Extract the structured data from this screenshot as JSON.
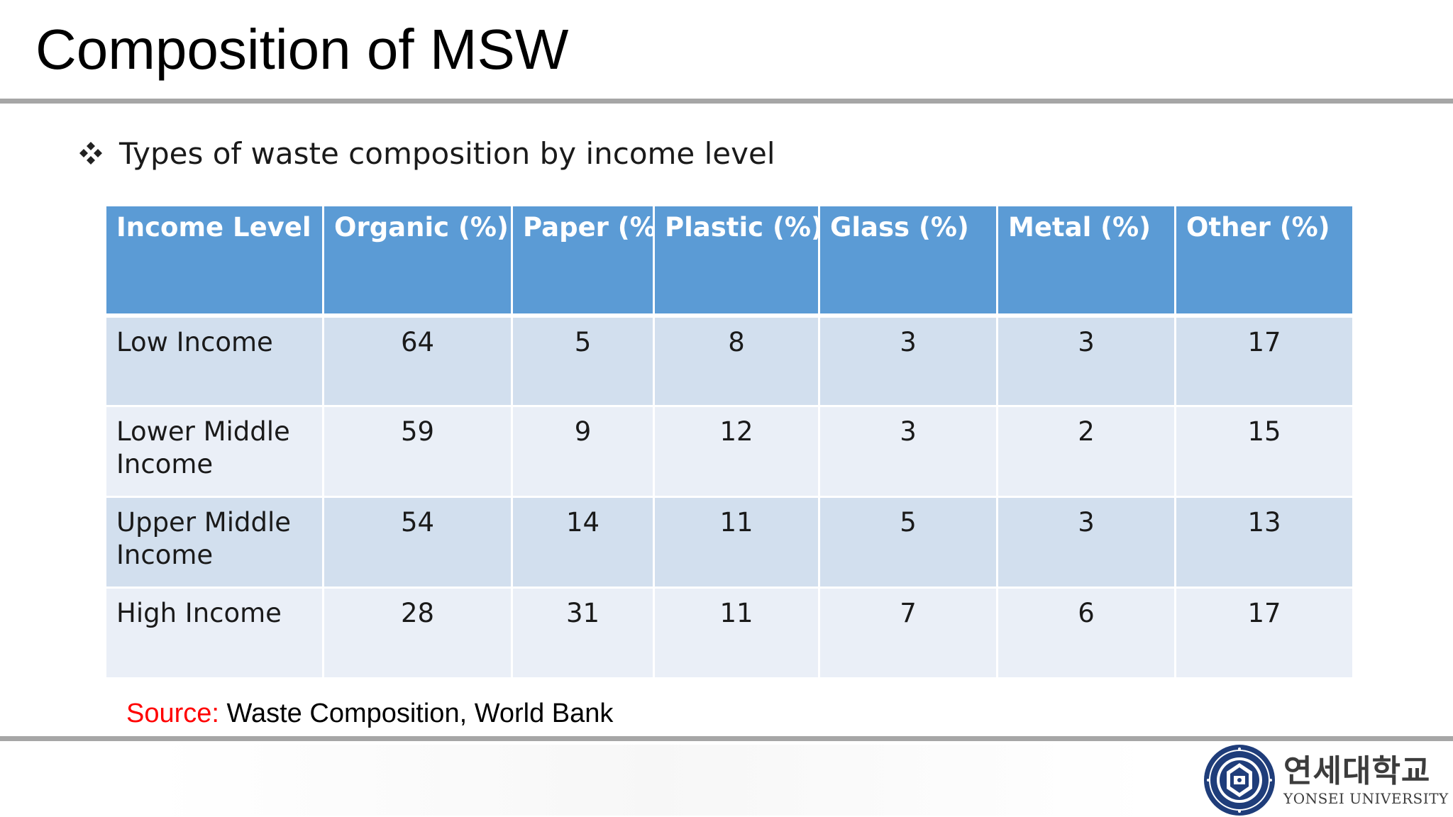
{
  "title": "Composition of MSW",
  "bullet": {
    "icon": "four-diamond-bullet-icon",
    "text": "Types of waste composition by income level"
  },
  "table": {
    "headers": [
      "Income Level",
      "Organic (%)",
      "Paper (%)",
      "Plastic (%)",
      "Glass (%)",
      "Metal (%)",
      "Other (%)"
    ],
    "rows": [
      [
        "Low Income",
        "64",
        "5",
        "8",
        "3",
        "3",
        "17"
      ],
      [
        "Lower Middle Income",
        "59",
        "9",
        "12",
        "3",
        "2",
        "15"
      ],
      [
        "Upper Middle Income",
        "54",
        "14",
        "11",
        "5",
        "3",
        "13"
      ],
      [
        "High Income",
        "28",
        "31",
        "11",
        "7",
        "6",
        "17"
      ]
    ]
  },
  "source": {
    "label": "Source:",
    "text": "Waste Composition, World Bank"
  },
  "logo": {
    "korean": "연세대학교",
    "english": "YONSEI UNIVERSITY",
    "seal_icon": "yonsei-university-seal-icon"
  },
  "colors": {
    "header_bg": "#5b9bd5",
    "row_odd_bg": "#d2dfee",
    "row_even_bg": "#eaeff7",
    "rule": "#a6a6a6",
    "source_label": "#ff0000",
    "seal_blue": "#1f3d7a"
  }
}
